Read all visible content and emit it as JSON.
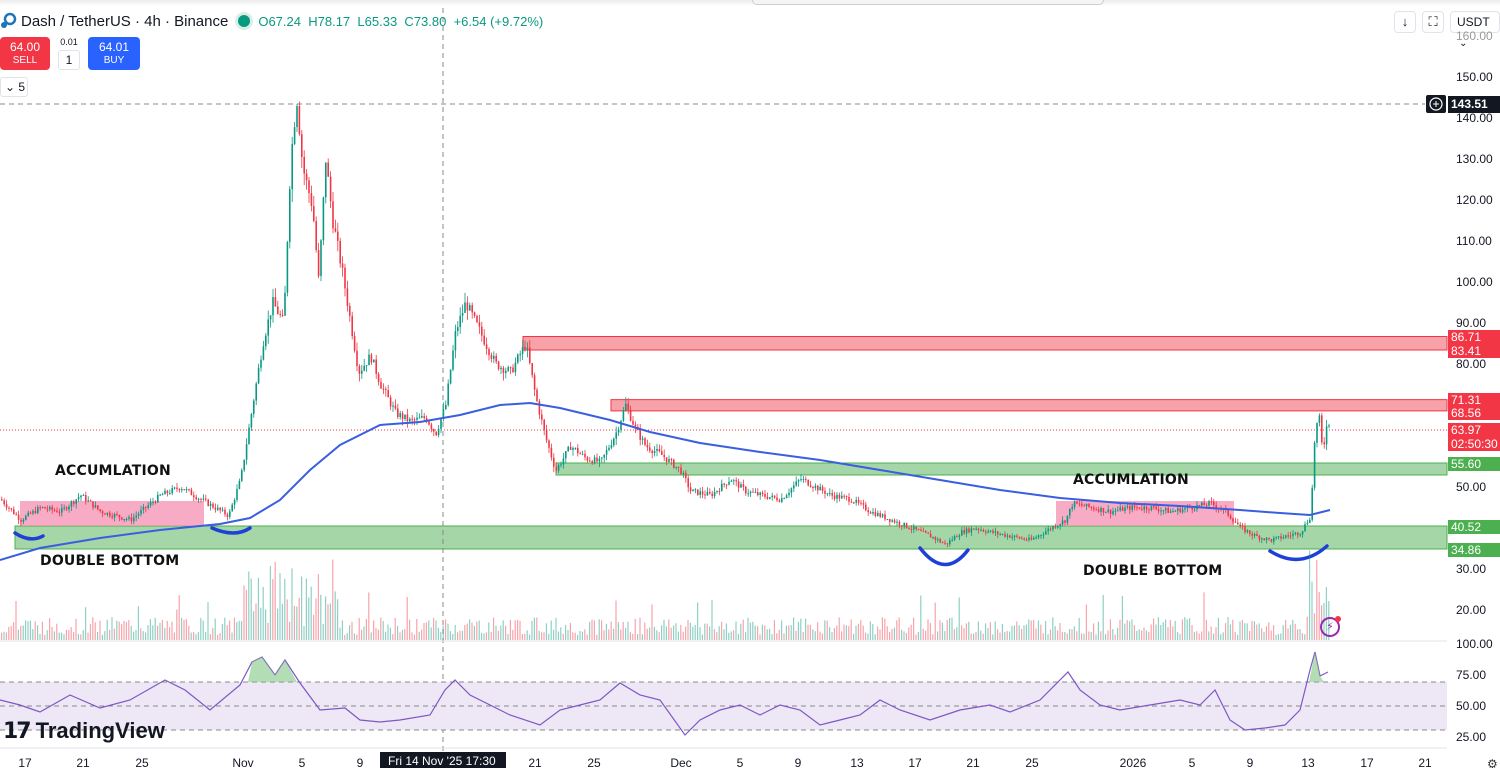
{
  "header": {
    "symbol_title": "Dash / TetherUS · 4h · Binance",
    "market_status": "open",
    "ohlc": {
      "open_label": "O",
      "open": "67.24",
      "high_label": "H",
      "high": "78.17",
      "low_label": "L",
      "low": "65.33",
      "close_label": "C",
      "close": "73.80",
      "change": "+6.54 (+9.72%)"
    }
  },
  "trade_panel": {
    "sell_price": "64.00",
    "sell_label": "SELL",
    "spread": "0.01",
    "quantity": "1",
    "buy_price": "64.01",
    "buy_label": "BUY"
  },
  "indicators_toggle": {
    "count": "5",
    "icon": "chevron-down-icon"
  },
  "toolbar": {
    "scroll_icon": "arrow-down-icon",
    "fullscreen_icon": "fullscreen-icon",
    "currency": "USDT",
    "currency_icon": "chevron-down-icon"
  },
  "price_axis": {
    "ticks": [
      "160.00",
      "150.00",
      "140.00",
      "130.00",
      "120.00",
      "110.00",
      "100.00",
      "90.00",
      "80.00",
      "50.00",
      "30.00",
      "20.00"
    ],
    "crosshair_price": "143.51",
    "tags": [
      {
        "value": "86.71",
        "color": "#f23645"
      },
      {
        "value": "83.41",
        "color": "#f23645"
      },
      {
        "value": "71.31",
        "color": "#f23645"
      },
      {
        "value": "68.56",
        "color": "#f23645"
      },
      {
        "value": "63.97",
        "color": "#f23645"
      },
      {
        "value": "02:50:30",
        "color": "#f23645"
      },
      {
        "value": "55.60",
        "color": "#4caf50"
      },
      {
        "value": "40.52",
        "color": "#4caf50"
      },
      {
        "value": "34.86",
        "color": "#4caf50"
      }
    ]
  },
  "rsi_axis": {
    "ticks": [
      "100.00",
      "75.00",
      "50.00",
      "25.00"
    ]
  },
  "time_axis": {
    "labels": [
      "17",
      "21",
      "25",
      "Nov",
      "5",
      "9",
      "21",
      "25",
      "Dec",
      "5",
      "9",
      "13",
      "17",
      "21",
      "25",
      "2026",
      "5",
      "9",
      "13",
      "17",
      "21"
    ],
    "crosshair_time": "Fri 14 Nov '25   17:30"
  },
  "annotations": {
    "accumulation_left": "ACCUMLATION",
    "double_bottom_left": "DOUBLE BOTTOM",
    "accumulation_right": "ACCUMLATION",
    "double_bottom_right": "DOUBLE BOTTOM"
  },
  "branding": {
    "logo_text": "TradingView"
  },
  "colors": {
    "up": "#089981",
    "down": "#f23645",
    "ma": "#3a5ee0",
    "resistance_fill": "#f7a1a8",
    "support_fill": "#a5d6a7",
    "rsi_line": "#7e57c2",
    "rsi_band": "#ede7f6"
  },
  "chart_data": {
    "type": "candlestick",
    "title": "Dash / TetherUS · 4h · Binance",
    "x": [
      "Oct 17",
      "Oct 21",
      "Oct 25",
      "Nov 1",
      "Nov 5",
      "Nov 9",
      "Nov 14",
      "Nov 21",
      "Nov 25",
      "Dec 1",
      "Dec 5",
      "Dec 9",
      "Dec 13",
      "Dec 17",
      "Dec 21",
      "Dec 25",
      "Jan 1 2026",
      "Jan 5",
      "Jan 9",
      "Jan 13"
    ],
    "close_approx": [
      47,
      45,
      46,
      48,
      120,
      85,
      66,
      82,
      58,
      53,
      48,
      49,
      44,
      38,
      40,
      41,
      45,
      44,
      39,
      64
    ],
    "series": [
      {
        "name": "MA",
        "values_approx": [
          37,
          40,
          42,
          44,
          48,
          60,
          67,
          71,
          66,
          62,
          58,
          55,
          52,
          50,
          48,
          46,
          45,
          44,
          43,
          44
        ]
      },
      {
        "name": "RSI",
        "values_approx": [
          55,
          50,
          48,
          62,
          90,
          55,
          45,
          65,
          40,
          35,
          50,
          45,
          40,
          35,
          48,
          60,
          55,
          58,
          30,
          92
        ]
      }
    ],
    "zones": [
      {
        "type": "resistance",
        "from": 83.41,
        "to": 86.71
      },
      {
        "type": "resistance",
        "from": 68.56,
        "to": 71.31
      },
      {
        "type": "support",
        "from": 53.5,
        "to": 55.6
      },
      {
        "type": "support",
        "from": 34.86,
        "to": 40.52
      }
    ],
    "last_price": 63.97,
    "ylim": [
      15,
      160
    ],
    "ylabel": "USDT",
    "rsi_levels": [
      70,
      50,
      30
    ]
  }
}
